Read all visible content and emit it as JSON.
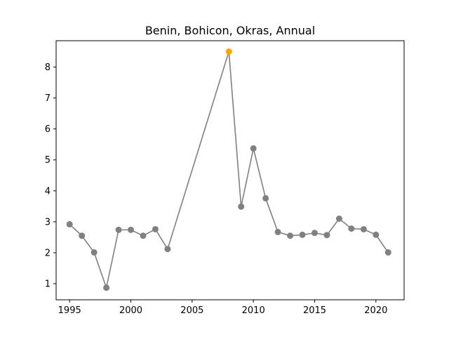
{
  "chart_data": {
    "type": "line",
    "title": "Benin, Bohicon, Okras, Annual",
    "xlabel": "",
    "ylabel": "",
    "xlim": [
      1993.9,
      2022.3
    ],
    "ylim": [
      0.48,
      8.85
    ],
    "x_ticks": [
      1995,
      2000,
      2005,
      2010,
      2015,
      2020
    ],
    "y_ticks": [
      1,
      2,
      3,
      4,
      5,
      6,
      7,
      8
    ],
    "grid": false,
    "legend": "none",
    "line_color": "#808080",
    "marker_color": "#808080",
    "highlight_color": "#FFA500",
    "highlight_x": 2008,
    "series": [
      {
        "x": [
          1995,
          1996,
          1997,
          1998,
          1999,
          2000,
          2001,
          2002,
          2003,
          2008,
          2009,
          2010,
          2011,
          2012,
          2013,
          2014,
          2015,
          2016,
          2017,
          2018,
          2019,
          2020,
          2021
        ],
        "values": [
          2.92,
          2.55,
          2.01,
          0.87,
          2.74,
          2.74,
          2.55,
          2.76,
          2.12,
          8.5,
          3.49,
          5.37,
          3.76,
          2.67,
          2.55,
          2.58,
          2.64,
          2.57,
          3.1,
          2.78,
          2.76,
          2.58,
          2.01
        ]
      }
    ]
  }
}
